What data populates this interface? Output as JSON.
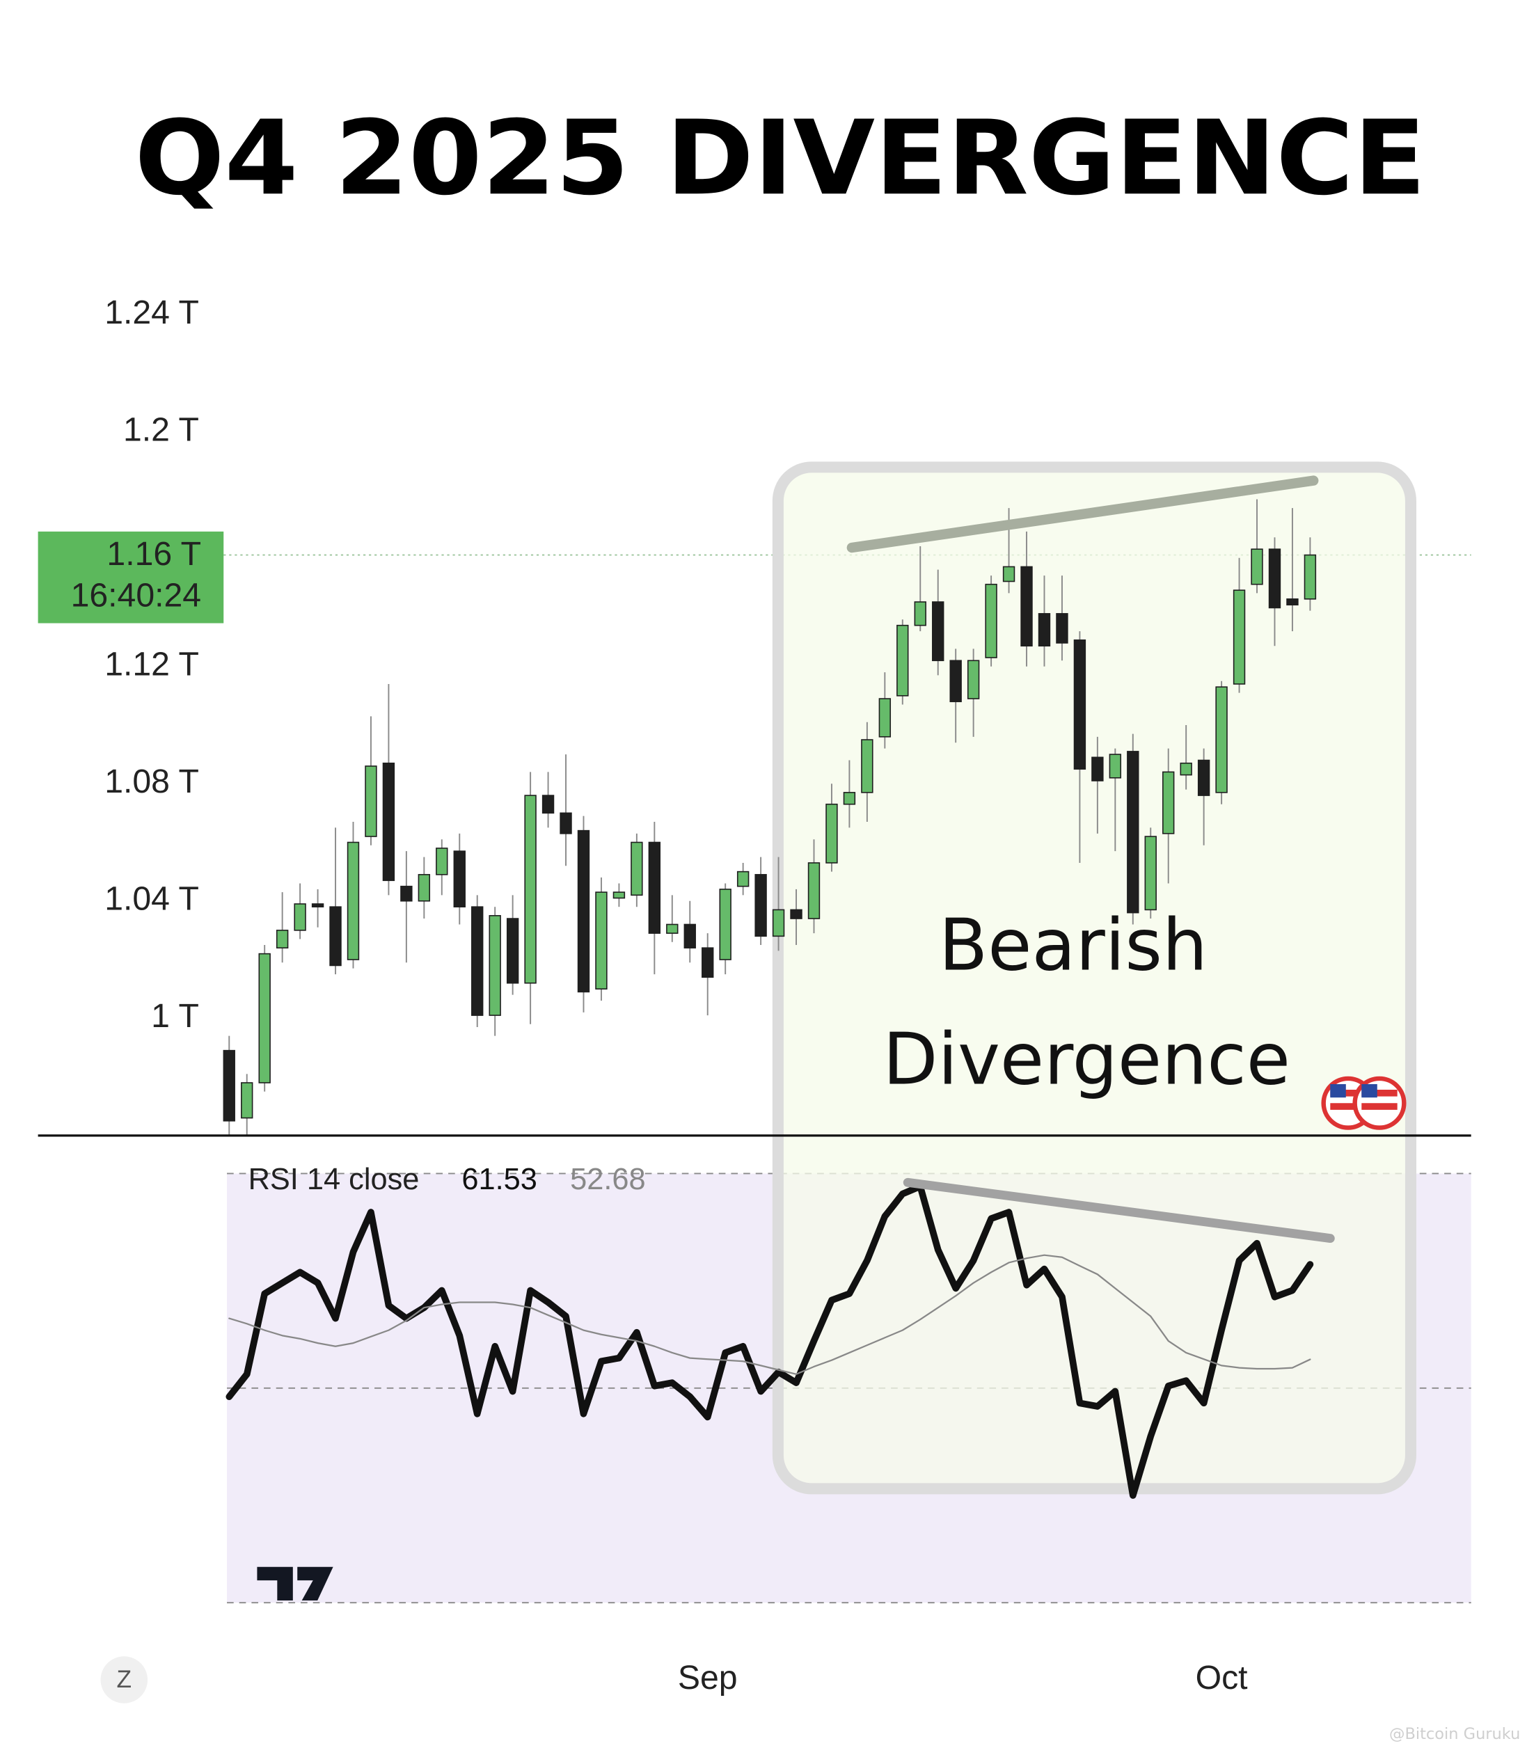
{
  "chart_data": [
    {
      "type": "candlestick",
      "title": "Q4 2025 DIVERGENCE",
      "annotation": [
        "Bearish",
        "Divergence"
      ],
      "price_label": "1.16 T",
      "countdown": "16:40:24",
      "categories": [
        null,
        null,
        null,
        null,
        null,
        null,
        null,
        null,
        null,
        null,
        null,
        null,
        null,
        null,
        null,
        null,
        null,
        null,
        null,
        null,
        null,
        null,
        null,
        null,
        null,
        null,
        null,
        "Sep",
        null,
        null,
        null,
        null,
        null,
        null,
        null,
        null,
        null,
        null,
        null,
        null,
        null,
        null,
        null,
        null,
        null,
        null,
        null,
        null,
        null,
        null,
        null,
        null,
        null,
        null,
        null,
        null,
        "Oct",
        null,
        null,
        null,
        null,
        null
      ],
      "open": [
        0.989,
        0.966,
        0.978,
        1.024,
        1.03,
        1.039,
        1.038,
        1.02,
        1.062,
        1.087,
        1.045,
        1.04,
        1.049,
        1.057,
        1.038,
        1.001,
        1.034,
        1.012,
        1.076,
        1.07,
        1.064,
        1.01,
        1.041,
        1.042,
        1.06,
        1.029,
        1.032,
        1.024,
        1.02,
        1.045,
        1.049,
        1.028,
        1.037,
        1.034,
        1.053,
        1.073,
        1.077,
        1.096,
        1.11,
        1.134,
        1.142,
        1.122,
        1.109,
        1.123,
        1.149,
        1.154,
        1.138,
        1.138,
        1.129,
        1.089,
        1.082,
        1.091,
        1.037,
        1.063,
        1.083,
        1.088,
        1.077,
        1.114,
        1.148,
        1.16,
        1.143,
        1.143
      ],
      "high": [
        0.994,
        0.981,
        1.025,
        1.043,
        1.046,
        1.044,
        1.065,
        1.067,
        1.103,
        1.114,
        1.057,
        1.055,
        1.061,
        1.063,
        1.042,
        1.038,
        1.042,
        1.084,
        1.084,
        1.09,
        1.069,
        1.048,
        1.046,
        1.063,
        1.067,
        1.042,
        1.04,
        1.029,
        1.046,
        1.053,
        1.055,
        1.055,
        1.044,
        1.061,
        1.08,
        1.088,
        1.101,
        1.118,
        1.136,
        1.161,
        1.153,
        1.126,
        1.126,
        1.151,
        1.174,
        1.166,
        1.151,
        1.151,
        1.132,
        1.096,
        1.092,
        1.097,
        1.065,
        1.092,
        1.1,
        1.092,
        1.115,
        1.157,
        1.177,
        1.164,
        1.174,
        1.164
      ],
      "low": [
        0.96,
        0.96,
        0.975,
        1.019,
        1.027,
        1.031,
        1.015,
        1.017,
        1.059,
        1.042,
        1.019,
        1.034,
        1.042,
        1.032,
        0.997,
        0.994,
        1.008,
        0.998,
        1.065,
        1.052,
        1.002,
        1.006,
        1.038,
        1.038,
        1.015,
        1.026,
        1.019,
        1.001,
        1.015,
        1.042,
        1.025,
        1.023,
        1.025,
        1.029,
        1.05,
        1.065,
        1.067,
        1.092,
        1.107,
        1.132,
        1.117,
        1.094,
        1.096,
        1.12,
        1.145,
        1.12,
        1.12,
        1.122,
        1.053,
        1.063,
        1.057,
        1.032,
        1.034,
        1.046,
        1.078,
        1.059,
        1.073,
        1.111,
        1.145,
        1.127,
        1.132,
        1.139
      ],
      "close": [
        0.965,
        0.978,
        1.022,
        1.03,
        1.039,
        1.038,
        1.018,
        1.06,
        1.086,
        1.047,
        1.04,
        1.049,
        1.058,
        1.038,
        1.001,
        1.035,
        1.012,
        1.076,
        1.07,
        1.063,
        1.009,
        1.043,
        1.043,
        1.06,
        1.029,
        1.032,
        1.024,
        1.014,
        1.044,
        1.05,
        1.028,
        1.037,
        1.034,
        1.053,
        1.073,
        1.077,
        1.095,
        1.109,
        1.134,
        1.142,
        1.122,
        1.108,
        1.122,
        1.148,
        1.154,
        1.127,
        1.127,
        1.128,
        1.085,
        1.081,
        1.09,
        1.036,
        1.062,
        1.084,
        1.087,
        1.076,
        1.113,
        1.146,
        1.16,
        1.14,
        1.141,
        1.158
      ],
      "up_color": "#66bb6a",
      "down_color": "#1f1f1f",
      "ylim": [
        0.96,
        1.252
      ],
      "yticks": [
        {
          "value": 1,
          "label": "1 T"
        },
        {
          "value": 1.04,
          "label": "1.04 T"
        },
        {
          "value": 1.08,
          "label": "1.08 T"
        },
        {
          "value": 1.12,
          "label": "1.12 T"
        },
        {
          "value": 1.2,
          "label": "1.2 T"
        },
        {
          "value": 1.24,
          "label": "1.24 T"
        }
      ]
    },
    {
      "type": "line",
      "title": "RSI 14 close",
      "series": [
        {
          "color": "#111111",
          "values": [
            49.2,
            51.3,
            58.8,
            59.8,
            60.8,
            59.8,
            56.5,
            62.7,
            66.4,
            57.7,
            56.5,
            57.5,
            59.1,
            54.9,
            47.6,
            53.9,
            49.7,
            59.1,
            58.0,
            56.7,
            47.6,
            52.5,
            52.8,
            55.2,
            50.2,
            50.5,
            49.2,
            47.3,
            53.3,
            53.9,
            49.7,
            51.5,
            50.5,
            54.4,
            58.2,
            58.8,
            61.9,
            66.0,
            68.1,
            68.8,
            62.9,
            59.3,
            61.9,
            65.8,
            66.4,
            59.6,
            61.1,
            58.5,
            48.6,
            48.3,
            49.7,
            40.0,
            45.5,
            50.2,
            50.7,
            48.6,
            55.4,
            61.9,
            63.5,
            58.5,
            59.1,
            61.53
          ]
        },
        {
          "color": "#888888",
          "values": [
            56.5,
            56.0,
            55.4,
            54.9,
            54.6,
            54.2,
            53.9,
            54.2,
            54.8,
            55.4,
            56.3,
            57.5,
            57.8,
            58.0,
            58.0,
            58.0,
            57.8,
            57.5,
            56.8,
            56.1,
            55.4,
            55.0,
            54.7,
            54.4,
            53.9,
            53.3,
            52.8,
            52.7,
            52.6,
            52.5,
            52.1,
            51.7,
            51.3,
            52.0,
            52.6,
            53.3,
            54.0,
            54.7,
            55.4,
            56.4,
            57.5,
            58.6,
            59.8,
            60.8,
            61.7,
            62.1,
            62.4,
            62.2,
            61.4,
            60.6,
            59.3,
            58.0,
            56.7,
            54.4,
            53.3,
            52.7,
            52.1,
            51.9,
            51.8,
            51.8,
            51.9,
            52.68
          ]
        }
      ],
      "band_color": "#f1ecf9",
      "ylim": [
        30,
        70
      ],
      "yticks": [
        30,
        50,
        70
      ]
    }
  ],
  "footer": {
    "zoom_button": "Z",
    "watermark": "@Bitcoin Guruku"
  }
}
